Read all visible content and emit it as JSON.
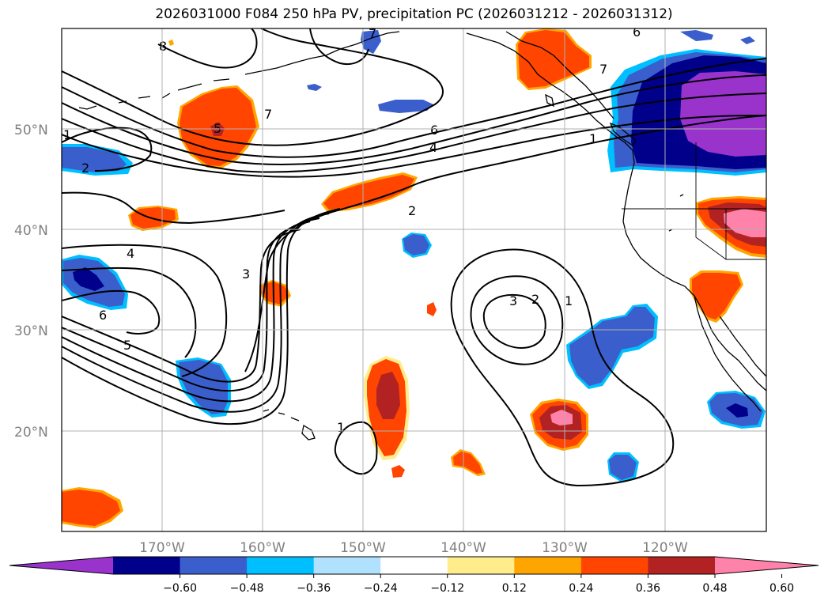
{
  "title": "2026031000 F084 250 hPa PV, precipitation PC (2026031212 - 2026031312)",
  "lat_labels": [
    "50°N",
    "40°N",
    "30°N",
    "20°N"
  ],
  "lon_labels": [
    "170°W",
    "160°W",
    "150°W",
    "140°W",
    "130°W",
    "120°W"
  ],
  "contour_labels": [
    "8",
    "7",
    "6",
    "5",
    "4",
    "2",
    "1",
    "7",
    "6",
    "4",
    "2",
    "1",
    "5",
    "4",
    "3",
    "6",
    "5",
    "3",
    "2",
    "1",
    "1",
    "6",
    "7"
  ],
  "colorbar": {
    "ticks": [
      "−0.60",
      "−0.48",
      "−0.36",
      "−0.24",
      "−0.12",
      "0.12",
      "0.24",
      "0.36",
      "0.48",
      "0.60"
    ],
    "colors": [
      "#9933cc",
      "#00008b",
      "#3a5fcd",
      "#00bfff",
      "#b0e2ff",
      "#ffffff",
      "#ffec8b",
      "#ffa500",
      "#ff4500",
      "#b22222",
      "#ff82ab"
    ]
  },
  "colors": {
    "coast": "#000000",
    "grid": "#b0b0b0",
    "contour": "#000000"
  }
}
